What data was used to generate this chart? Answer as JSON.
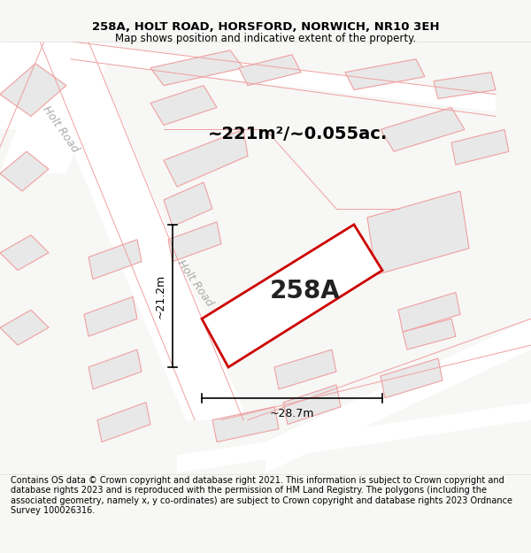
{
  "title": "258A, HOLT ROAD, HORSFORD, NORWICH, NR10 3EH",
  "subtitle": "Map shows position and indicative extent of the property.",
  "area_label": "~221m²/~0.055ac.",
  "property_label": "258A",
  "dim_h": "~21.2m",
  "dim_w": "~28.7m",
  "road_label_1": "Holt Road",
  "road_label_2": "Holt Road",
  "footer": "Contains OS data © Crown copyright and database right 2021. This information is subject to Crown copyright and database rights 2023 and is reproduced with the permission of HM Land Registry. The polygons (including the associated geometry, namely x, y co-ordinates) are subject to Crown copyright and database rights 2023 Ordnance Survey 100026316.",
  "bg_color": "#f7f7f5",
  "map_bg": "#f7f7f5",
  "building_fill": "#e8e8e8",
  "building_edge": "#f0a0a0",
  "property_edge": "#cc0000",
  "road_color": "#ffffff",
  "road_outline": "#f0a0a0",
  "title_fontsize": 9.5,
  "subtitle_fontsize": 8.5,
  "footer_fontsize": 7.0,
  "label_fontsize": 20,
  "area_fontsize": 14,
  "dim_fontsize": 9
}
